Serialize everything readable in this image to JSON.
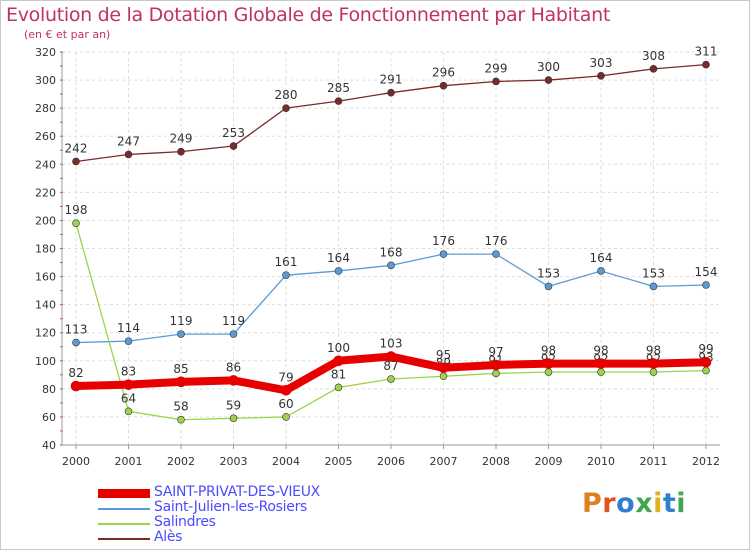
{
  "title": "Evolution de la Dotation Globale de Fonctionnement par Habitant",
  "subtitle": "(en € et par an)",
  "logo": {
    "text": "Proxiti",
    "colors": [
      "#e07f1f",
      "#e0521f",
      "#2f7fd0",
      "#3fa84f",
      "#e0b01f",
      "#2f7fd0",
      "#3fa84f"
    ]
  },
  "chart_data": {
    "type": "line",
    "title": "Evolution de la Dotation Globale de Fonctionnement par Habitant",
    "subtitle": "(en € et par an)",
    "xlabel": "",
    "ylabel": "",
    "categories": [
      "2000",
      "2001",
      "2002",
      "2003",
      "2004",
      "2005",
      "2006",
      "2007",
      "2008",
      "2009",
      "2010",
      "2011",
      "2012"
    ],
    "ylim": [
      40,
      320
    ],
    "yticks": [
      40,
      60,
      80,
      100,
      120,
      140,
      160,
      180,
      200,
      220,
      240,
      260,
      280,
      300,
      320
    ],
    "grid": true,
    "legend_position": "bottom-left",
    "series": [
      {
        "name": "Alès",
        "color": "#7a2a2a",
        "values": [
          242,
          247,
          249,
          253,
          280,
          285,
          291,
          296,
          299,
          300,
          303,
          308,
          311
        ]
      },
      {
        "name": "Saint-Julien-les-Rosiers",
        "color": "#5b9bd5",
        "values": [
          113,
          114,
          119,
          119,
          161,
          164,
          168,
          176,
          176,
          153,
          164,
          153,
          154
        ]
      },
      {
        "name": "Salindres",
        "color": "#9bd44a",
        "values": [
          198,
          64,
          58,
          59,
          60,
          81,
          87,
          89,
          91,
          92,
          92,
          92,
          93
        ]
      },
      {
        "name": "SAINT-PRIVAT-DES-VIEUX",
        "color": "#e60000",
        "values": [
          82,
          83,
          85,
          86,
          79,
          100,
          103,
          95,
          97,
          98,
          98,
          98,
          99
        ]
      }
    ],
    "legend": [
      {
        "name": "SAINT-PRIVAT-DES-VIEUX",
        "color": "#e60000"
      },
      {
        "name": "Saint-Julien-les-Rosiers",
        "color": "#5b9bd5"
      },
      {
        "name": "Salindres",
        "color": "#9bd44a"
      },
      {
        "name": "Alès",
        "color": "#7a2a2a"
      }
    ]
  }
}
